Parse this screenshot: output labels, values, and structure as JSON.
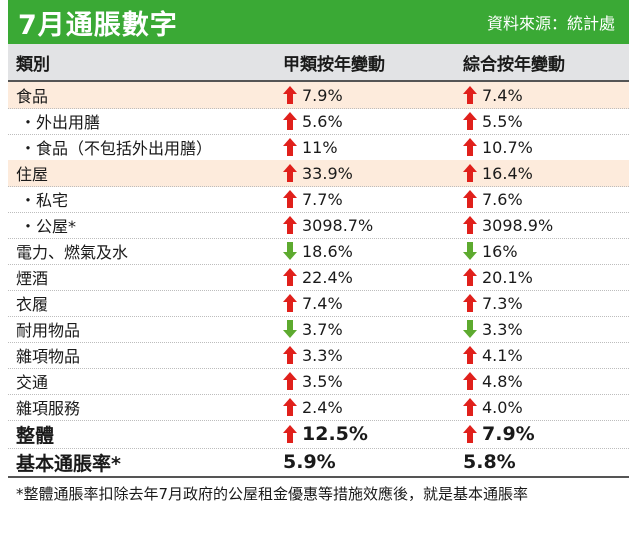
{
  "header": {
    "title": "7月通脹數字",
    "source": "資料來源：統計處"
  },
  "columns": [
    "類別",
    "甲類按年變動",
    "綜合按年變動"
  ],
  "colors": {
    "accent": "#3aa935",
    "up": "#e0201b",
    "down": "#5daa2f",
    "highlight": "#fdebdc"
  },
  "rows": [
    {
      "label": "食品",
      "a": "7.9%",
      "a_dir": "up",
      "b": "7.4%",
      "b_dir": "up"
    },
    {
      "label": "・外出用膳",
      "a": "5.6%",
      "a_dir": "up",
      "b": "5.5%",
      "b_dir": "up"
    },
    {
      "label": "・食品（不包括外出用膳）",
      "a": "11%",
      "a_dir": "up",
      "b": "10.7%",
      "b_dir": "up"
    },
    {
      "label": "住屋",
      "a": "33.9%",
      "a_dir": "up",
      "b": "16.4%",
      "b_dir": "up"
    },
    {
      "label": "・私宅",
      "a": "7.7%",
      "a_dir": "up",
      "b": "7.6%",
      "b_dir": "up"
    },
    {
      "label": "・公屋*",
      "a": "3098.7%",
      "a_dir": "up",
      "b": "3098.9%",
      "b_dir": "up"
    },
    {
      "label": "電力、燃氣及水",
      "a": "18.6%",
      "a_dir": "down",
      "b": "16%",
      "b_dir": "down"
    },
    {
      "label": "煙酒",
      "a": "22.4%",
      "a_dir": "up",
      "b": "20.1%",
      "b_dir": "up"
    },
    {
      "label": "衣履",
      "a": "7.4%",
      "a_dir": "up",
      "b": "7.3%",
      "b_dir": "up"
    },
    {
      "label": "耐用物品",
      "a": "3.7%",
      "a_dir": "down",
      "b": "3.3%",
      "b_dir": "down"
    },
    {
      "label": "雜項物品",
      "a": "3.3%",
      "a_dir": "up",
      "b": "4.1%",
      "b_dir": "up"
    },
    {
      "label": "交通",
      "a": "3.5%",
      "a_dir": "up",
      "b": "4.8%",
      "b_dir": "up"
    },
    {
      "label": "雜項服務",
      "a": "2.4%",
      "a_dir": "up",
      "b": "4.0%",
      "b_dir": "up"
    }
  ],
  "totals": [
    {
      "label": "整體",
      "a": "12.5%",
      "a_dir": "up",
      "b": "7.9%",
      "b_dir": "up"
    },
    {
      "label": "基本通脹率*",
      "a": "5.9%",
      "a_dir": "",
      "b": "5.8%",
      "b_dir": ""
    }
  ],
  "footnote": "*整體通脹率扣除去年7月政府的公屋租金優惠等措施效應後，就是基本通脹率"
}
